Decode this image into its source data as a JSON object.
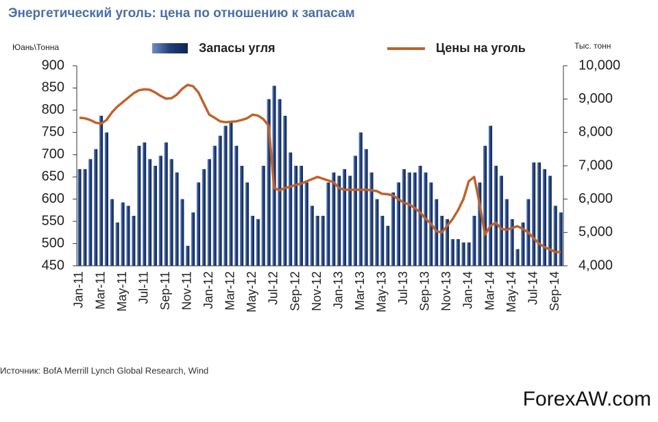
{
  "chart_data": {
    "type": "combo",
    "title": "Энергетический уголь: цена по отношению к запасам",
    "y_label": "Юань\\Тонна",
    "y2_label": "Тыс. тонн",
    "source": "Источник: BofA Merrill Lynch Global Research, Wind",
    "watermark": "ForexAW.com",
    "categories": [
      "Jan-11",
      null,
      null,
      null,
      "Mar-11",
      null,
      null,
      null,
      "May-11",
      null,
      null,
      null,
      "Jul-11",
      null,
      null,
      null,
      "Sep-11",
      null,
      null,
      null,
      "Nov-11",
      null,
      null,
      null,
      "Jan-12",
      null,
      null,
      null,
      "Mar-12",
      null,
      null,
      null,
      "May-12",
      null,
      null,
      null,
      "Jul-12",
      null,
      null,
      null,
      "Sep-12",
      null,
      null,
      null,
      "Nov-12",
      null,
      null,
      null,
      "Jan-13",
      null,
      null,
      null,
      "Mar-13",
      null,
      null,
      null,
      "May-13",
      null,
      null,
      null,
      "Jul-13",
      null,
      null,
      null,
      "Sep-13",
      null,
      null,
      null,
      "Nov-13",
      null,
      null,
      null,
      "Jan-14",
      null,
      null,
      null,
      "Mar-14",
      null,
      null,
      null,
      "May-14",
      null,
      null,
      null,
      "Jul-14",
      null,
      null,
      null,
      "Sep-14",
      null
    ],
    "series": [
      {
        "name": "Запасы угля",
        "type": "bar",
        "axis": "y2",
        "color": "#1f3f7a",
        "values": [
          6900,
          6900,
          7200,
          7500,
          8500,
          8000,
          6000,
          5300,
          5900,
          5800,
          5500,
          7600,
          7700,
          7200,
          7000,
          7300,
          7700,
          7200,
          6800,
          6000,
          4600,
          5600,
          6500,
          6900,
          7200,
          7600,
          7900,
          8200,
          8300,
          7600,
          7000,
          6500,
          5500,
          5400,
          7000,
          9000,
          9400,
          9000,
          8500,
          7400,
          7000,
          7000,
          6500,
          5800,
          5500,
          5500,
          6500,
          6800,
          6700,
          6900,
          6700,
          7300,
          8000,
          7500,
          6800,
          6000,
          5500,
          5200,
          6200,
          6500,
          6900,
          6800,
          6800,
          7000,
          6800,
          6500,
          6000,
          5500,
          5400,
          4800,
          4800,
          4700,
          4700,
          5500,
          6500,
          7600,
          8200,
          7000,
          6700,
          6000,
          5400,
          4500,
          5300,
          6000,
          7100,
          7100,
          6900,
          6700,
          5800,
          5600
        ]
      },
      {
        "name": "Цены на уголь",
        "type": "line",
        "axis": "y",
        "color": "#c0622b",
        "values": [
          783,
          782,
          778,
          772,
          770,
          778,
          795,
          808,
          818,
          828,
          838,
          845,
          847,
          846,
          840,
          832,
          826,
          827,
          835,
          848,
          857,
          854,
          840,
          815,
          790,
          783,
          775,
          773,
          774,
          775,
          778,
          782,
          790,
          788,
          780,
          765,
          625,
          620,
          625,
          628,
          632,
          635,
          640,
          645,
          650,
          646,
          642,
          638,
          625,
          621,
          621,
          621,
          621,
          621,
          620,
          618,
          612,
          611,
          608,
          600,
          592,
          588,
          580,
          570,
          556,
          545,
          528,
          525,
          540,
          555,
          575,
          600,
          640,
          650,
          590,
          520,
          540,
          547,
          533,
          531,
          535,
          539,
          533,
          525,
          512,
          500,
          492,
          487,
          481,
          481
        ]
      }
    ],
    "ylim": [
      450,
      900
    ],
    "yticks": [
      450,
      500,
      550,
      600,
      650,
      700,
      750,
      800,
      850,
      900
    ],
    "y2lim": [
      4000,
      10000
    ],
    "y2ticks": [
      {
        "value": 4000,
        "label": "4,000"
      },
      {
        "value": 5000,
        "label": "5,000"
      },
      {
        "value": 6000,
        "label": "6,000"
      },
      {
        "value": 7000,
        "label": "7,000"
      },
      {
        "value": 8000,
        "label": "8,000"
      },
      {
        "value": 9000,
        "label": "9,000"
      },
      {
        "value": 10000,
        "label": "10,000"
      }
    ]
  }
}
